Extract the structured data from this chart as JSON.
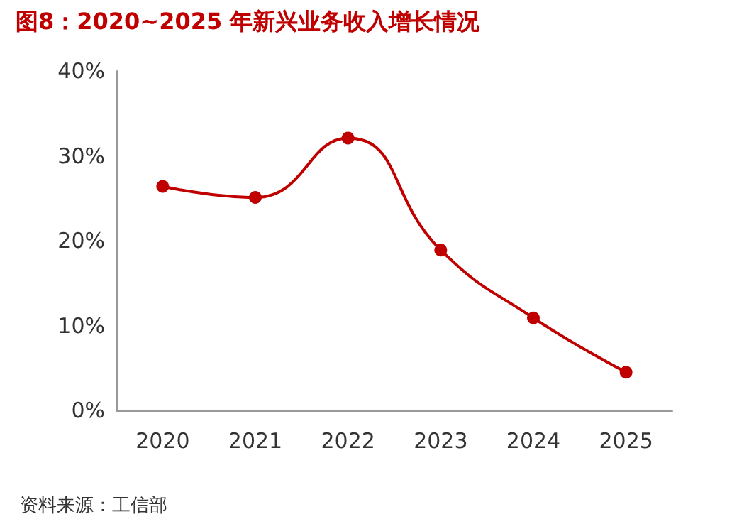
{
  "chart_data": {
    "type": "line",
    "title": "图8：2020~2025 年新兴业务收入增长情况",
    "categories": [
      "2020",
      "2021",
      "2022",
      "2023",
      "2024",
      "2025"
    ],
    "series": [
      {
        "color": "#c00000",
        "values": [
          26.4,
          25.1,
          32.1,
          18.9,
          10.9,
          4.5
        ]
      }
    ],
    "ylim": [
      0,
      40
    ],
    "yticks": [
      {
        "value": 0,
        "label": "0%"
      },
      {
        "value": 10,
        "label": "10%"
      },
      {
        "value": 20,
        "label": "20%"
      },
      {
        "value": 30,
        "label": "30%"
      },
      {
        "value": 40,
        "label": "40%"
      }
    ],
    "annotations": [
      "资料来源：工信部"
    ],
    "grid": false,
    "marker": "circle",
    "line_style": "solid"
  }
}
